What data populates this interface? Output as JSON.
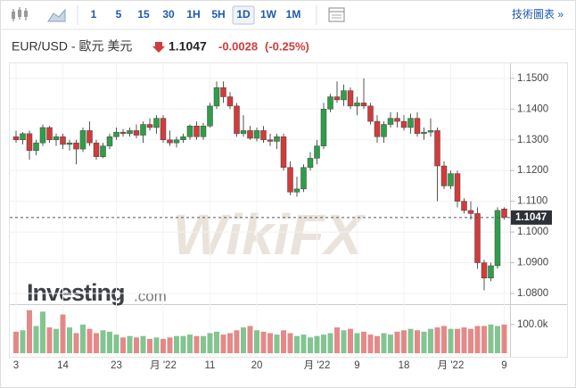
{
  "toolbar": {
    "intervals": [
      "1",
      "5",
      "15",
      "30",
      "1H",
      "5H",
      "1D",
      "1W",
      "1M"
    ],
    "selected": "1D",
    "link": "技術圖表 »"
  },
  "header": {
    "symbol": "EUR/USD - 歐元 美元",
    "price": "1.1047",
    "change": "-0.0028",
    "change_pct": "(-0.25%)"
  },
  "watermark": "WikiFX",
  "logo_main": "Investing",
  "logo_suffix": ".com",
  "chart_data": {
    "type": "candlestick",
    "categories": [
      "3",
      null,
      null,
      null,
      null,
      null,
      null,
      "14",
      null,
      null,
      null,
      null,
      null,
      null,
      null,
      "23",
      null,
      null,
      null,
      null,
      null,
      null,
      "月 '22",
      null,
      null,
      null,
      null,
      null,
      null,
      "11",
      null,
      null,
      null,
      null,
      null,
      null,
      "20",
      null,
      null,
      null,
      null,
      null,
      null,
      null,
      null,
      "月 '22",
      null,
      null,
      null,
      null,
      null,
      "9",
      null,
      null,
      null,
      null,
      null,
      null,
      "18",
      null,
      null,
      null,
      null,
      null,
      null,
      "月 '22",
      null,
      null,
      null,
      null,
      null,
      null,
      null,
      "9"
    ],
    "open": [
      1.131,
      1.13,
      1.132,
      1.1265,
      1.129,
      1.134,
      1.13,
      1.131,
      1.1285,
      1.129,
      1.127,
      1.133,
      1.129,
      1.1245,
      1.128,
      1.131,
      1.1325,
      1.132,
      1.133,
      1.1315,
      1.135,
      1.134,
      1.137,
      1.13,
      1.129,
      1.13,
      1.131,
      1.1345,
      1.131,
      1.1345,
      1.141,
      1.147,
      1.144,
      1.141,
      1.132,
      1.133,
      1.1305,
      1.133,
      1.13,
      1.1295,
      1.131,
      1.121,
      1.113,
      1.114,
      1.121,
      1.124,
      1.128,
      1.14,
      1.144,
      1.143,
      1.146,
      1.141,
      1.142,
      1.141,
      1.136,
      1.131,
      1.135,
      1.137,
      1.136,
      1.134,
      1.137,
      1.132,
      1.1325,
      1.133,
      1.1215,
      1.115,
      1.119,
      1.11,
      1.107,
      1.106,
      1.09,
      1.085,
      1.089,
      1.1075
    ],
    "high": [
      1.133,
      1.1325,
      1.133,
      1.13,
      1.135,
      1.1345,
      1.132,
      1.132,
      1.13,
      1.13,
      1.134,
      1.136,
      1.13,
      1.129,
      1.132,
      1.134,
      1.1335,
      1.134,
      1.135,
      1.136,
      1.137,
      1.138,
      1.138,
      1.133,
      1.131,
      1.132,
      1.135,
      1.136,
      1.1355,
      1.142,
      1.149,
      1.149,
      1.1455,
      1.142,
      1.138,
      1.1345,
      1.134,
      1.1345,
      1.132,
      1.132,
      1.132,
      1.123,
      1.118,
      1.122,
      1.126,
      1.13,
      1.142,
      1.145,
      1.149,
      1.148,
      1.147,
      1.144,
      1.15,
      1.142,
      1.138,
      1.136,
      1.139,
      1.139,
      1.138,
      1.1385,
      1.139,
      1.134,
      1.137,
      1.134,
      1.123,
      1.12,
      1.12,
      1.111,
      1.11,
      1.108,
      1.091,
      1.09,
      1.108,
      1.108
    ],
    "low": [
      1.129,
      1.1285,
      1.1235,
      1.125,
      1.128,
      1.129,
      1.128,
      1.127,
      1.1265,
      1.122,
      1.126,
      1.128,
      1.1235,
      1.124,
      1.127,
      1.13,
      1.131,
      1.131,
      1.1305,
      1.129,
      1.133,
      1.132,
      1.129,
      1.128,
      1.1275,
      1.129,
      1.13,
      1.13,
      1.13,
      1.134,
      1.14,
      1.142,
      1.14,
      1.131,
      1.131,
      1.13,
      1.1295,
      1.129,
      1.128,
      1.127,
      1.12,
      1.112,
      1.1115,
      1.113,
      1.12,
      1.122,
      1.127,
      1.139,
      1.142,
      1.141,
      1.14,
      1.138,
      1.14,
      1.135,
      1.129,
      1.129,
      1.134,
      1.134,
      1.133,
      1.132,
      1.131,
      1.13,
      1.131,
      1.11,
      1.114,
      1.114,
      1.108,
      1.106,
      1.104,
      1.088,
      1.081,
      1.084,
      1.088,
      1.104
    ],
    "close": [
      1.13,
      1.132,
      1.1265,
      1.129,
      1.134,
      1.13,
      1.131,
      1.1285,
      1.129,
      1.127,
      1.133,
      1.129,
      1.1245,
      1.128,
      1.131,
      1.1325,
      1.132,
      1.133,
      1.1315,
      1.135,
      1.134,
      1.137,
      1.13,
      1.129,
      1.13,
      1.131,
      1.1345,
      1.131,
      1.1345,
      1.141,
      1.147,
      1.144,
      1.141,
      1.132,
      1.133,
      1.1305,
      1.133,
      1.13,
      1.1295,
      1.131,
      1.121,
      1.113,
      1.114,
      1.121,
      1.124,
      1.128,
      1.14,
      1.144,
      1.143,
      1.146,
      1.141,
      1.142,
      1.141,
      1.136,
      1.131,
      1.135,
      1.137,
      1.136,
      1.134,
      1.137,
      1.132,
      1.1325,
      1.133,
      1.1215,
      1.115,
      1.119,
      1.11,
      1.107,
      1.106,
      1.09,
      1.085,
      1.089,
      1.107,
      1.1047
    ],
    "volume": [
      75000,
      80000,
      150000,
      95000,
      145000,
      90000,
      85000,
      135000,
      90000,
      70000,
      100000,
      85000,
      70000,
      80000,
      75000,
      65000,
      55000,
      60000,
      55000,
      60000,
      50000,
      55000,
      50000,
      55000,
      60000,
      60000,
      65000,
      60000,
      60000,
      70000,
      75000,
      65000,
      70000,
      80000,
      90000,
      95000,
      80000,
      75000,
      70000,
      65000,
      80000,
      70000,
      60000,
      65000,
      55000,
      60000,
      65000,
      70000,
      90000,
      80000,
      85000,
      70000,
      75000,
      65000,
      60000,
      70000,
      65000,
      75000,
      80000,
      85000,
      80000,
      75000,
      85000,
      90000,
      95000,
      85000,
      85000,
      90000,
      85000,
      95000,
      95000,
      100000,
      95000,
      100000
    ],
    "up_color": "#2e9e48",
    "down_color": "#d23b3b",
    "last_price": {
      "value": 1.1047,
      "label": "1.1047"
    },
    "ylim": [
      1.0768,
      1.1546
    ],
    "yticks": [
      {
        "value": 1.08,
        "label": "1.0800"
      },
      {
        "value": 1.09,
        "label": "1.0900"
      },
      {
        "value": 1.1,
        "label": "1.1000"
      },
      {
        "value": 1.11,
        "label": "1.1100"
      },
      {
        "value": 1.12,
        "label": "1.1200"
      },
      {
        "value": 1.13,
        "label": "1.1300"
      },
      {
        "value": 1.14,
        "label": "1.1400"
      },
      {
        "value": 1.15,
        "label": "1.1500"
      }
    ],
    "vlim": [
      0,
      168000
    ],
    "vticks": [
      {
        "value": 100000,
        "label": "100.0k"
      }
    ]
  }
}
